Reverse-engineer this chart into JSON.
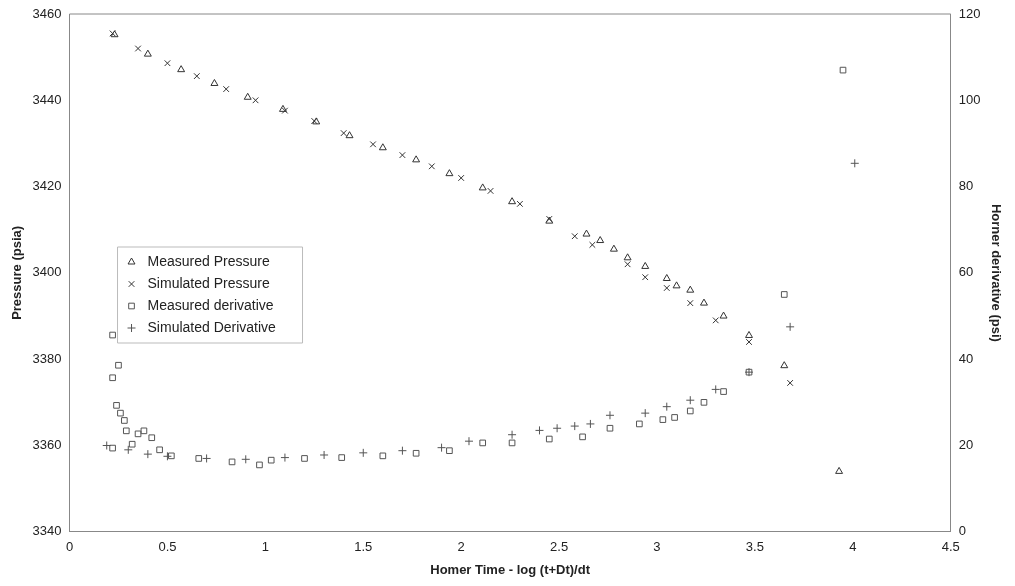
{
  "chart_data": {
    "type": "scatter",
    "xlabel": "Homer Time - log (t+Dt)/dt",
    "ylabel": "Pressure (psia)",
    "y2label": "Horner derivative (psi)",
    "xlim": [
      0,
      4.5
    ],
    "xticks": [
      0,
      0.5,
      1,
      1.5,
      2,
      2.5,
      3,
      3.5,
      4,
      4.5
    ],
    "ylim": [
      3340,
      3460
    ],
    "yticks": [
      3340,
      3360,
      3380,
      3400,
      3420,
      3440,
      3460
    ],
    "y2lim": [
      0,
      120
    ],
    "y2ticks": [
      0,
      20,
      40,
      60,
      80,
      100,
      120
    ],
    "grid": false,
    "legend": "left",
    "series": [
      {
        "name": "Measured Pressure",
        "color": "#333333",
        "marker": "triangle",
        "x": [
          0.23,
          0.4,
          0.57,
          0.74,
          0.91,
          1.09,
          1.26,
          1.43,
          1.6,
          1.77,
          1.94,
          2.11,
          2.26,
          2.45,
          2.64,
          2.71,
          2.78,
          2.85,
          2.94,
          3.05,
          3.1,
          3.17,
          3.24,
          3.34,
          3.47,
          3.65,
          3.93
        ],
        "values": [
          3455.2,
          3450.7,
          3447.1,
          3443.9,
          3440.7,
          3437.9,
          3435,
          3431.8,
          3429,
          3426.2,
          3423,
          3419.7,
          3416.5,
          3412,
          3409,
          3407.5,
          3405.5,
          3403.5,
          3401.5,
          3398.7,
          3397,
          3396,
          3393,
          3390,
          3385.5,
          3378.5,
          3354
        ]
      },
      {
        "name": "Simulated Pressure",
        "color": "#333333",
        "marker": "cross",
        "x": [
          0.22,
          0.35,
          0.5,
          0.65,
          0.8,
          0.95,
          1.1,
          1.25,
          1.4,
          1.55,
          1.7,
          1.85,
          2,
          2.15,
          2.3,
          2.45,
          2.58,
          2.67,
          2.85,
          2.94,
          3.05,
          3.17,
          3.3,
          3.47,
          3.68
        ],
        "values": [
          3455.5,
          3452,
          3448.6,
          3445.6,
          3442.6,
          3440,
          3437.6,
          3435.2,
          3432.4,
          3429.8,
          3427.3,
          3424.7,
          3422,
          3419,
          3416,
          3412.5,
          3408.5,
          3406.5,
          3402,
          3399,
          3396.5,
          3393,
          3389,
          3384,
          3374.5
        ]
      },
      {
        "name": "Measured derivative",
        "color": "#555555",
        "marker": "square",
        "axis": "y2",
        "x": [
          0.22,
          0.25,
          0.22,
          0.22,
          0.24,
          0.26,
          0.28,
          0.29,
          0.32,
          0.35,
          0.38,
          0.42,
          0.46,
          0.52,
          0.66,
          0.83,
          0.97,
          1.03,
          1.2,
          1.39,
          1.6,
          1.77,
          1.94,
          2.11,
          2.26,
          2.45,
          2.62,
          2.76,
          2.91,
          3.03,
          3.09,
          3.17,
          3.24,
          3.34,
          3.47,
          3.65,
          3.95
        ],
        "values": [
          45.6,
          38.6,
          35.7,
          19.4,
          29.3,
          27.5,
          25.8,
          23.4,
          20.3,
          22.7,
          23.4,
          21.8,
          19,
          17.6,
          17,
          16.2,
          15.5,
          16.6,
          17,
          17.2,
          17.6,
          18.2,
          18.8,
          20.6,
          20.6,
          21.5,
          22,
          24,
          25,
          26,
          26.5,
          28,
          30,
          32.5,
          37,
          55,
          107
        ]
      },
      {
        "name": "Simulated Derivative",
        "color": "#555555",
        "marker": "plus",
        "axis": "y2",
        "x": [
          0.19,
          0.3,
          0.4,
          0.5,
          0.7,
          0.9,
          1.1,
          1.3,
          1.5,
          1.7,
          1.9,
          2.04,
          2.26,
          2.4,
          2.49,
          2.58,
          2.66,
          2.76,
          2.94,
          3.05,
          3.17,
          3.3,
          3.47,
          3.68,
          4.01
        ],
        "values": [
          20,
          19,
          18,
          17.5,
          17,
          16.8,
          17.2,
          17.8,
          18.3,
          18.8,
          19.5,
          21,
          22.5,
          23.5,
          24,
          24.5,
          25,
          27,
          27.5,
          29,
          30.5,
          33,
          37,
          47.5,
          85.4
        ]
      }
    ]
  }
}
